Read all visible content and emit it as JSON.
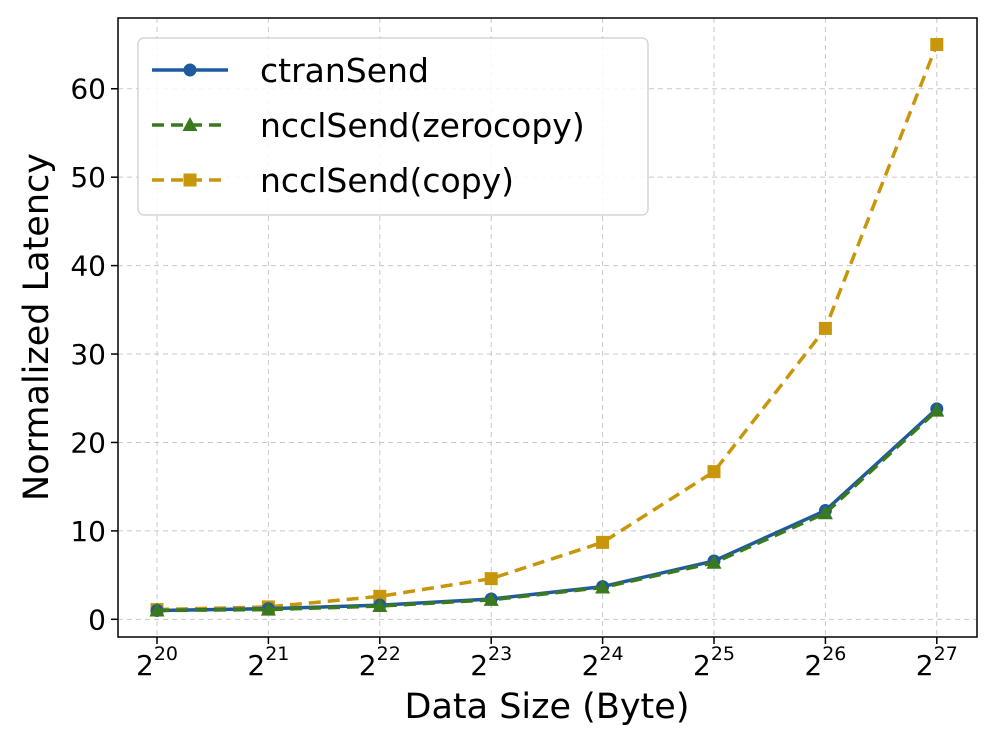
{
  "chart_data": {
    "type": "line",
    "xlabel": "Data Size (Byte)",
    "ylabel": "Normalized Latency",
    "x_scale": "log2",
    "x_ticks": [
      {
        "base": "2",
        "exp": "20"
      },
      {
        "base": "2",
        "exp": "21"
      },
      {
        "base": "2",
        "exp": "22"
      },
      {
        "base": "2",
        "exp": "23"
      },
      {
        "base": "2",
        "exp": "24"
      },
      {
        "base": "2",
        "exp": "25"
      },
      {
        "base": "2",
        "exp": "26"
      },
      {
        "base": "2",
        "exp": "27"
      }
    ],
    "x": [
      1048576,
      2097152,
      4194304,
      8388608,
      16777216,
      33554432,
      67108864,
      134217728
    ],
    "y_ticks": [
      "0",
      "10",
      "20",
      "30",
      "40",
      "50",
      "60"
    ],
    "ylim": [
      -2,
      68
    ],
    "grid": true,
    "legend_position": "top-left",
    "series": [
      {
        "name": "ctranSend",
        "values": [
          1.0,
          1.2,
          1.6,
          2.3,
          3.7,
          6.6,
          12.3,
          23.8
        ],
        "color": "#1f5aa0",
        "marker": "circle",
        "line_style": "solid"
      },
      {
        "name": "ncclSend(zerocopy)",
        "values": [
          1.0,
          1.1,
          1.5,
          2.2,
          3.6,
          6.4,
          12.0,
          23.6
        ],
        "color": "#3a7a1e",
        "marker": "triangle",
        "line_style": "dashed"
      },
      {
        "name": "ncclSend(copy)",
        "values": [
          1.1,
          1.4,
          2.6,
          4.6,
          8.7,
          16.7,
          32.9,
          65.0
        ],
        "color": "#c8960a",
        "marker": "square",
        "line_style": "dashed"
      }
    ]
  }
}
